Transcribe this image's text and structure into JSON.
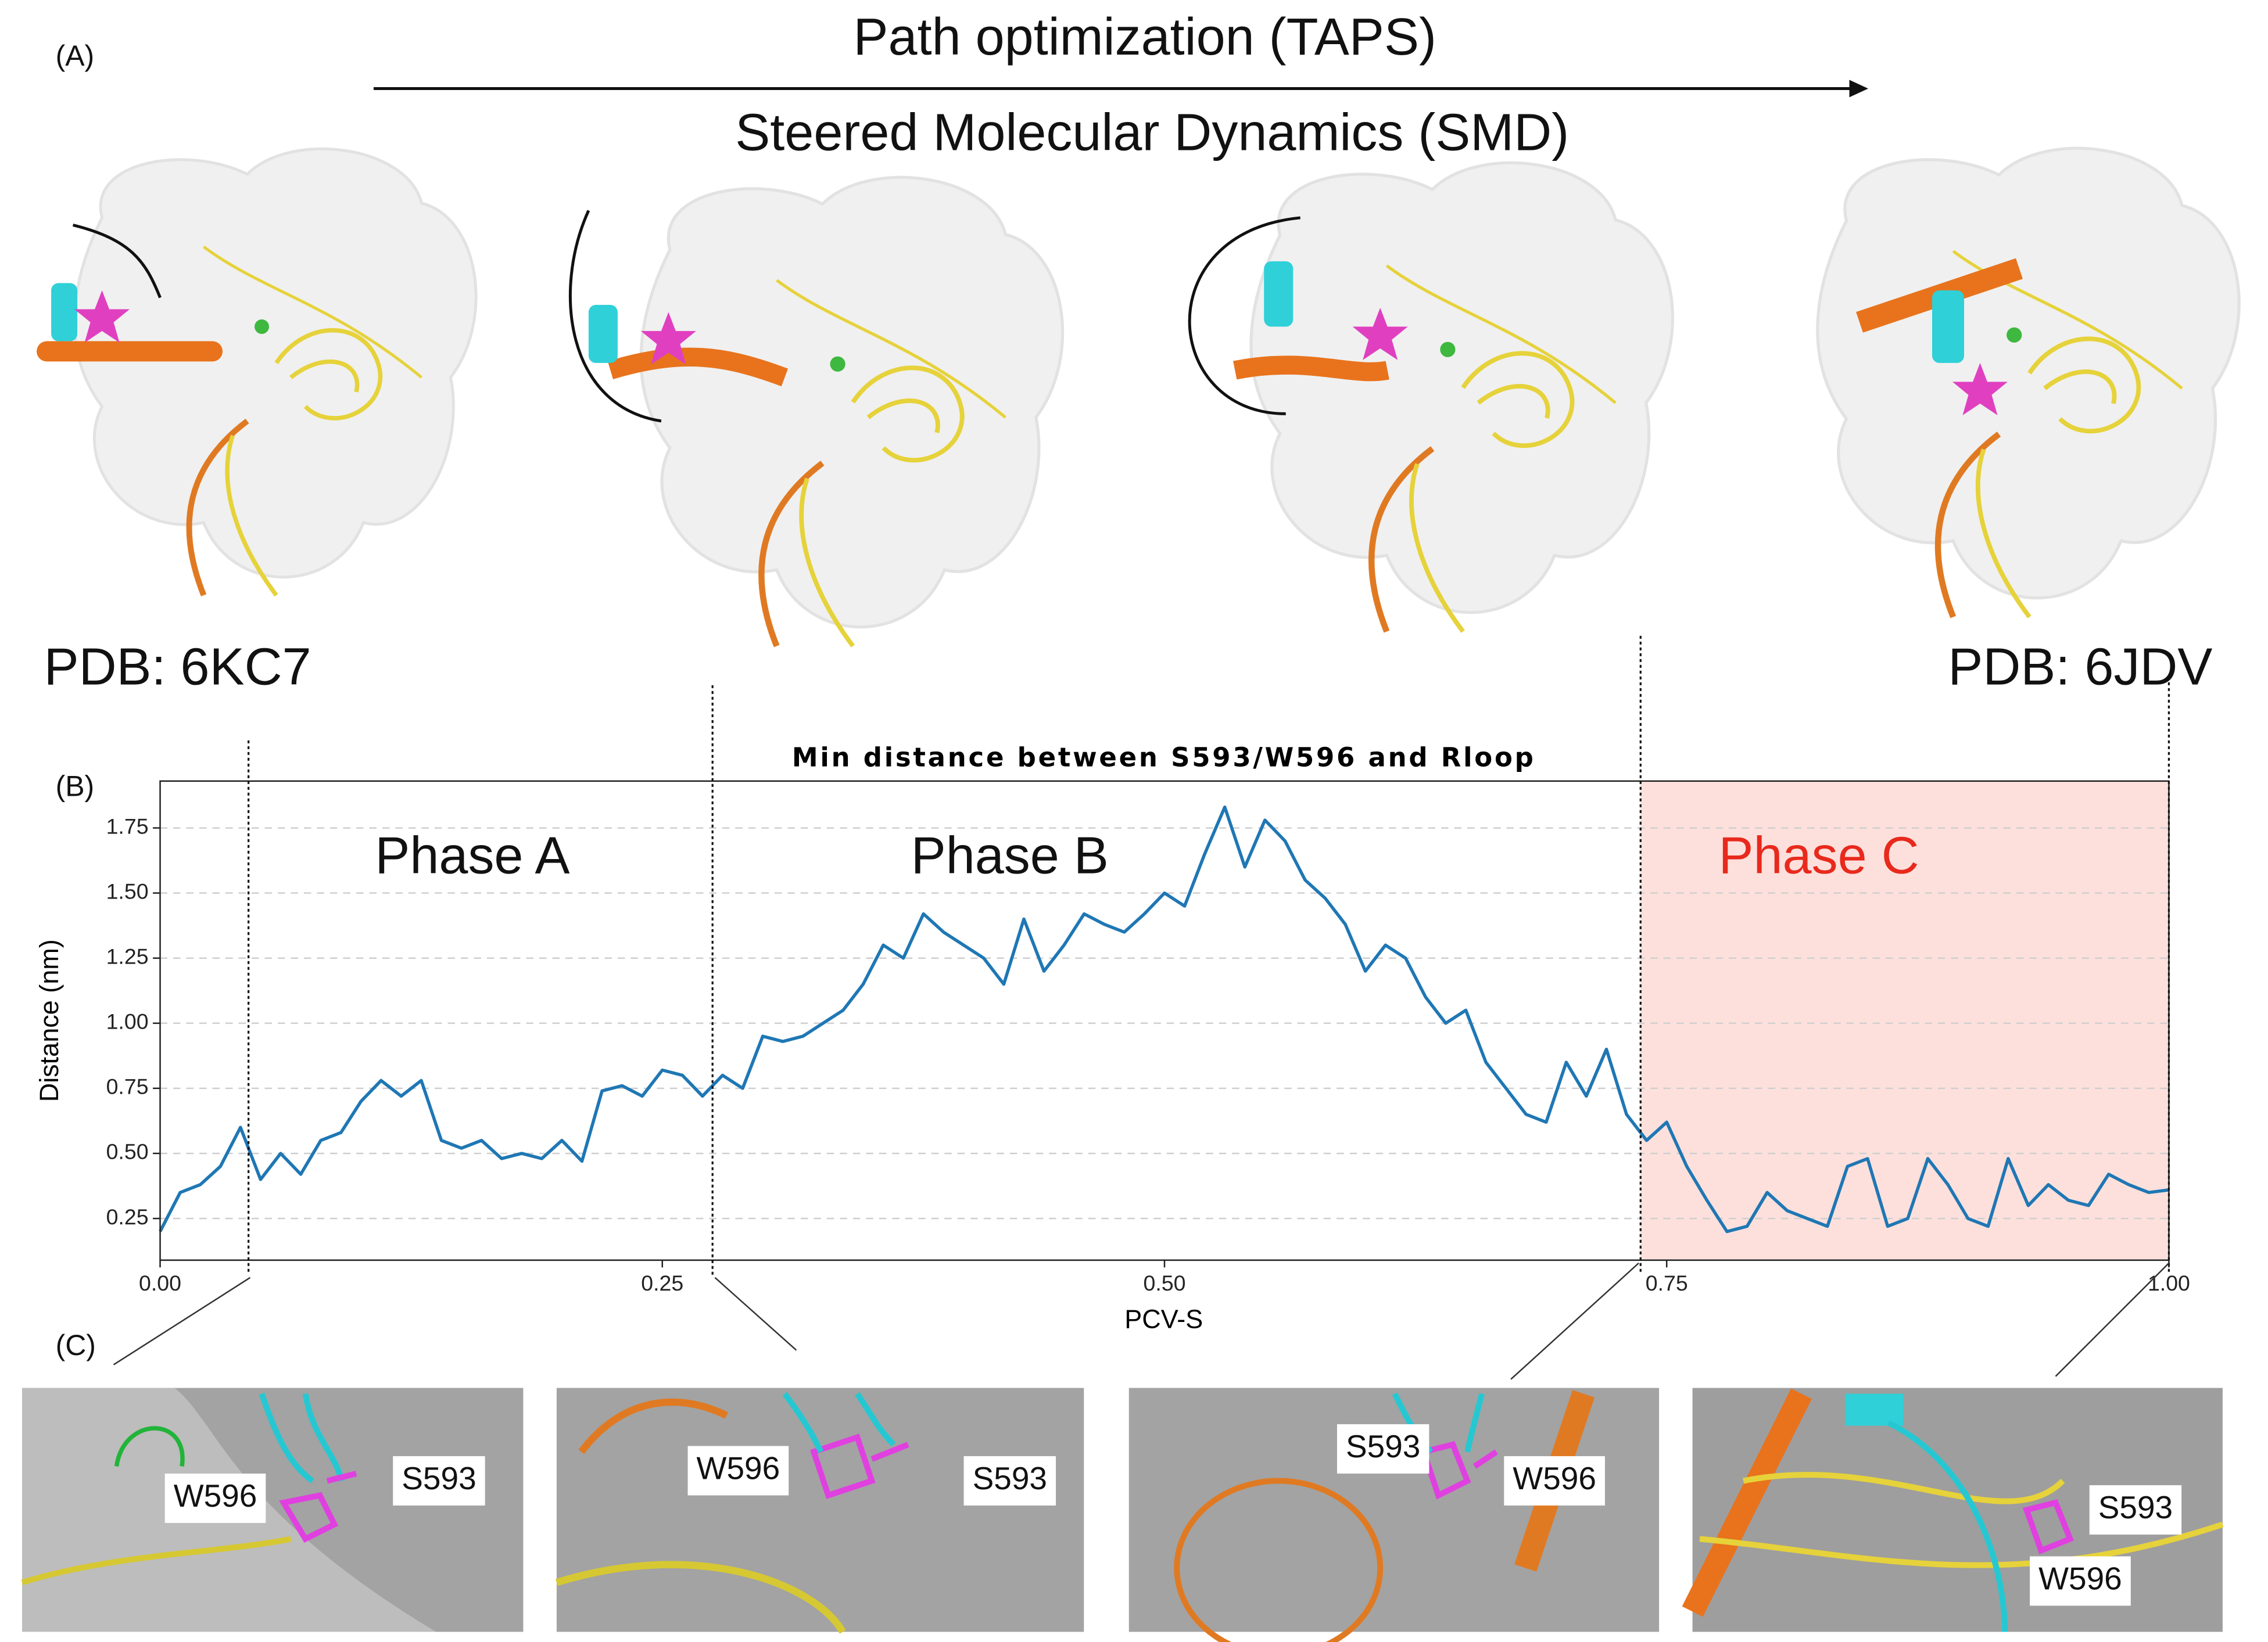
{
  "panel_labels": [
    "(A)",
    "(B)",
    "(C)"
  ],
  "header": {
    "top": "Path optimization (TAPS)",
    "bottom": "Steered Molecular Dynamics (SMD)"
  },
  "structures": [
    "PDB: 6KC7",
    "PDB: 6JDV"
  ],
  "insets": [
    {
      "labels": [
        "W596",
        "S593"
      ]
    },
    {
      "labels": [
        "W596",
        "S593"
      ]
    },
    {
      "labels": [
        "S593",
        "W596"
      ]
    },
    {
      "labels": [
        "S593",
        "W596"
      ]
    }
  ],
  "chart_data": {
    "type": "line",
    "title": "Min distance between S593/W596 and Rloop",
    "x_label": "PCV-S",
    "y_label": "Distance (nm)",
    "x": [
      0.0,
      0.01,
      0.02,
      0.03,
      0.04,
      0.05,
      0.06,
      0.07,
      0.08,
      0.09,
      0.1,
      0.11,
      0.12,
      0.13,
      0.14,
      0.15,
      0.16,
      0.17,
      0.18,
      0.19,
      0.2,
      0.21,
      0.22,
      0.23,
      0.24,
      0.25,
      0.26,
      0.27,
      0.28,
      0.29,
      0.3,
      0.31,
      0.32,
      0.33,
      0.34,
      0.35,
      0.36,
      0.37,
      0.38,
      0.39,
      0.4,
      0.41,
      0.42,
      0.43,
      0.44,
      0.45,
      0.46,
      0.47,
      0.48,
      0.49,
      0.5,
      0.51,
      0.52,
      0.53,
      0.54,
      0.55,
      0.56,
      0.57,
      0.58,
      0.59,
      0.6,
      0.61,
      0.62,
      0.63,
      0.64,
      0.65,
      0.66,
      0.67,
      0.68,
      0.69,
      0.7,
      0.71,
      0.72,
      0.73,
      0.74,
      0.75,
      0.76,
      0.77,
      0.78,
      0.79,
      0.8,
      0.81,
      0.82,
      0.83,
      0.84,
      0.85,
      0.86,
      0.87,
      0.88,
      0.89,
      0.9,
      0.91,
      0.92,
      0.93,
      0.94,
      0.95,
      0.96,
      0.97,
      0.98,
      0.99,
      1.0
    ],
    "series": [
      {
        "name": "min distance",
        "color": "#1f77b4",
        "values": [
          0.2,
          0.35,
          0.38,
          0.45,
          0.6,
          0.4,
          0.5,
          0.42,
          0.55,
          0.58,
          0.7,
          0.78,
          0.72,
          0.78,
          0.55,
          0.52,
          0.55,
          0.48,
          0.5,
          0.48,
          0.55,
          0.47,
          0.74,
          0.76,
          0.72,
          0.82,
          0.8,
          0.72,
          0.8,
          0.75,
          0.95,
          0.93,
          0.95,
          1.0,
          1.05,
          1.15,
          1.3,
          1.25,
          1.42,
          1.35,
          1.3,
          1.25,
          1.15,
          1.4,
          1.2,
          1.3,
          1.42,
          1.38,
          1.35,
          1.42,
          1.5,
          1.45,
          1.65,
          1.83,
          1.6,
          1.78,
          1.7,
          1.55,
          1.48,
          1.38,
          1.2,
          1.3,
          1.25,
          1.1,
          1.0,
          1.05,
          0.85,
          0.75,
          0.65,
          0.62,
          0.85,
          0.72,
          0.9,
          0.65,
          0.55,
          0.62,
          0.45,
          0.32,
          0.2,
          0.22,
          0.35,
          0.28,
          0.25,
          0.22,
          0.45,
          0.48,
          0.22,
          0.25,
          0.48,
          0.38,
          0.25,
          0.22,
          0.48,
          0.3,
          0.38,
          0.32,
          0.3,
          0.42,
          0.38,
          0.35,
          0.36
        ]
      }
    ],
    "xlim": [
      0,
      1
    ],
    "ylim": [
      0.09,
      1.93
    ],
    "xticks": [
      {
        "value": 0,
        "label": "0.00"
      },
      0.25,
      {
        "value": 0.5,
        "label": "0.50"
      },
      0.75,
      {
        "value": 1,
        "label": "1.00"
      }
    ],
    "yticks": [
      0.25,
      {
        "value": 0.5,
        "label": "0.50"
      },
      0.75,
      {
        "value": 1,
        "label": "1.00"
      },
      1.25,
      {
        "value": 1.5,
        "label": "1.50"
      },
      1.75
    ],
    "grid": true,
    "phase_boundaries": [
      0.044,
      0.275,
      0.737,
      1.0
    ],
    "shaded_region": {
      "range": [
        0.737,
        1.0
      ],
      "color": "#fde0dc"
    },
    "phases": [
      {
        "label": "Phase A",
        "color": "#111111"
      },
      {
        "label": "Phase B",
        "color": "#111111"
      },
      {
        "label": "Phase C",
        "color": "#e8291c"
      }
    ]
  }
}
